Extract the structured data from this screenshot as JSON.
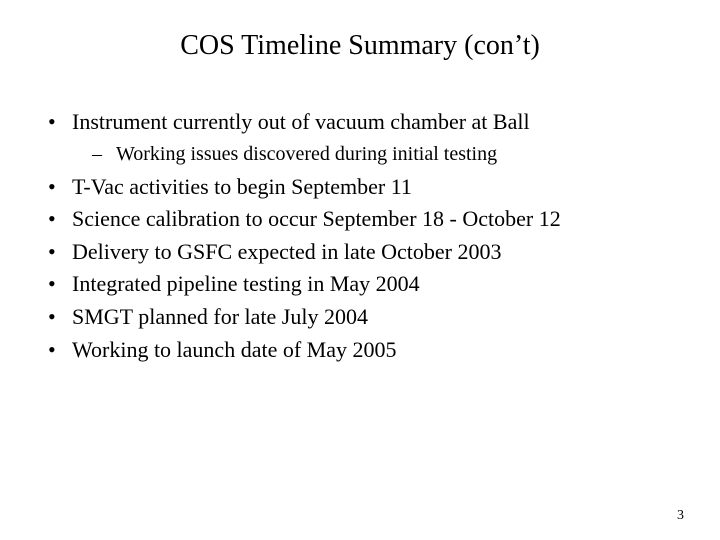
{
  "slide": {
    "title": "COS Timeline Summary (con’t)",
    "title_fontsize": 28,
    "body_fontsize": 22,
    "sub_fontsize": 20,
    "background_color": "#ffffff",
    "text_color": "#000000",
    "font_family": "Times New Roman",
    "page_number": "3",
    "items": [
      {
        "text": "Instrument currently out of vacuum chamber at Ball",
        "subitems": [
          {
            "text": "Working issues discovered during initial testing"
          }
        ]
      },
      {
        "text": "T-Vac activities to begin September 11"
      },
      {
        "text": "Science calibration to occur September 18 - October 12"
      },
      {
        "text": "Delivery to GSFC expected in late October 2003"
      },
      {
        "text": "Integrated pipeline testing in May 2004"
      },
      {
        "text": "SMGT planned for late July 2004"
      },
      {
        "text": "Working to launch date of May 2005"
      }
    ]
  }
}
